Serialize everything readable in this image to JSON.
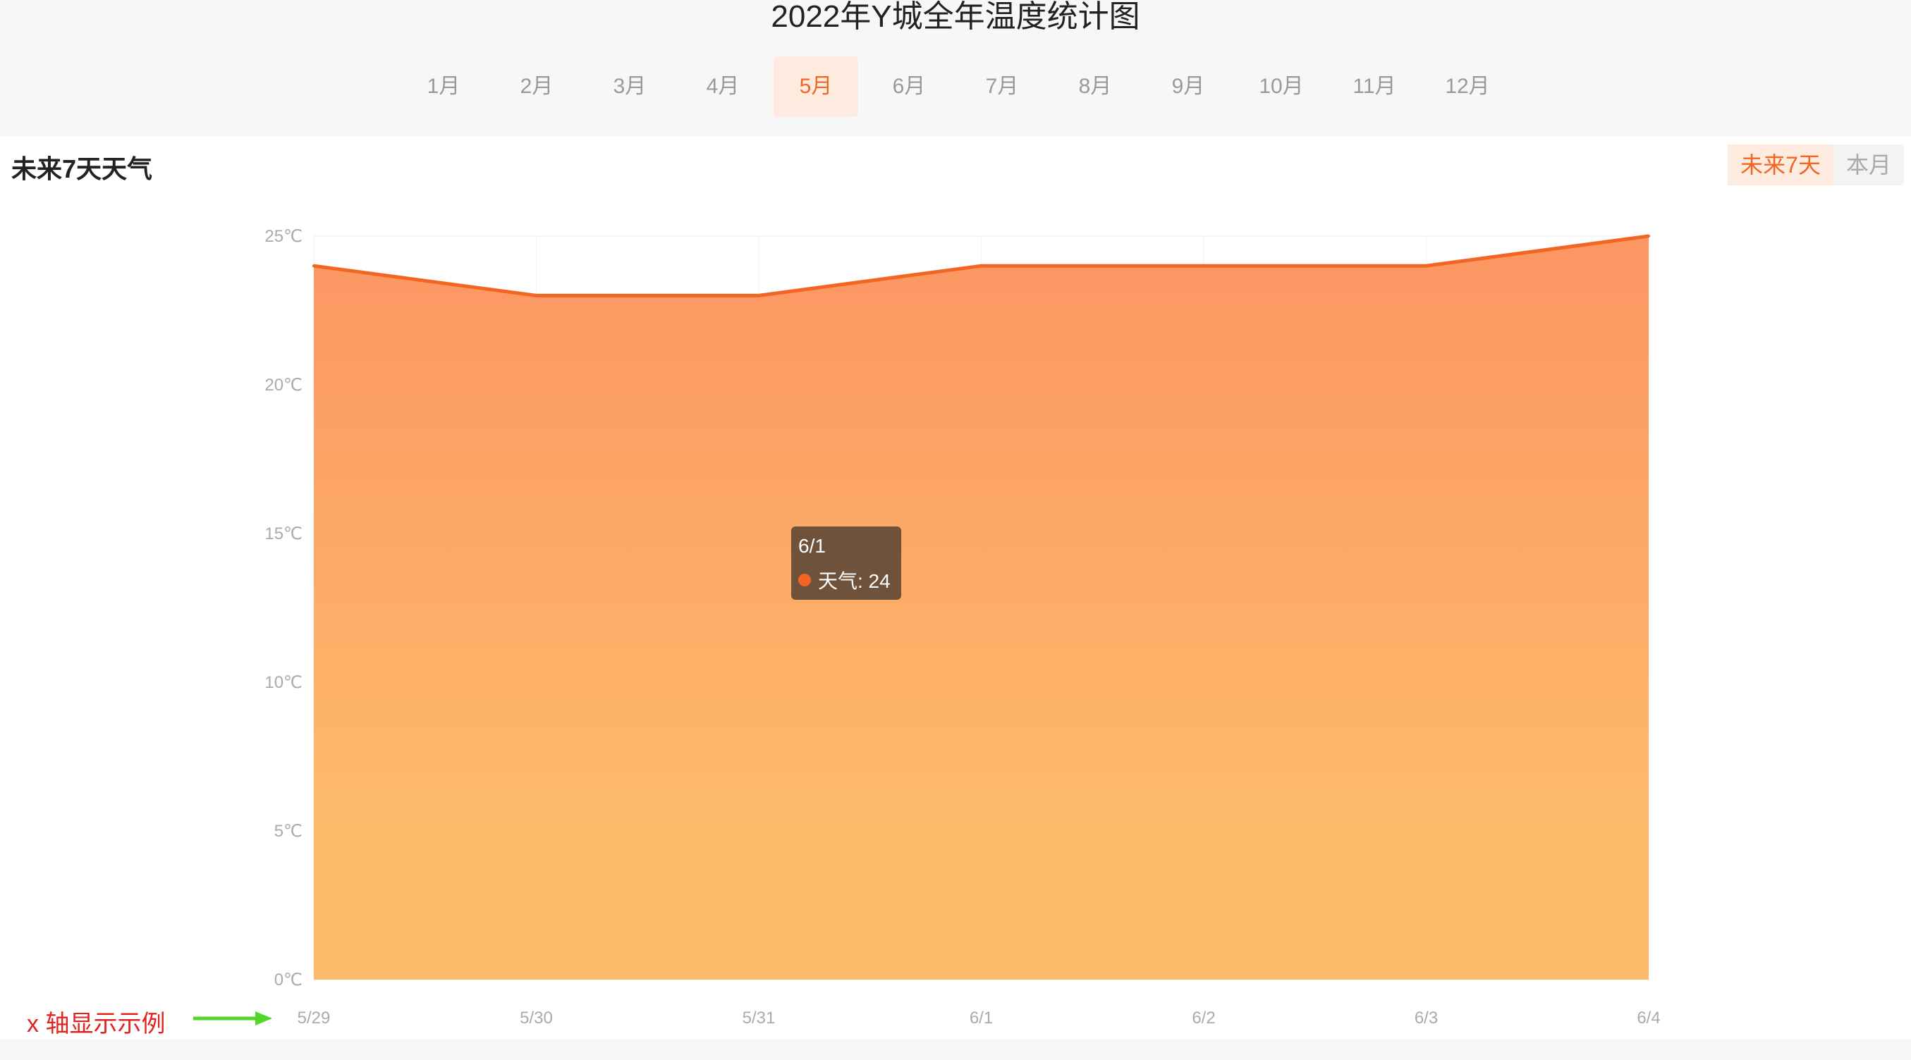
{
  "page_title": "2022年Y城全年温度统计图",
  "months": [
    {
      "label": "1月",
      "active": false
    },
    {
      "label": "2月",
      "active": false
    },
    {
      "label": "3月",
      "active": false
    },
    {
      "label": "4月",
      "active": false
    },
    {
      "label": "5月",
      "active": true
    },
    {
      "label": "6月",
      "active": false
    },
    {
      "label": "7月",
      "active": false
    },
    {
      "label": "8月",
      "active": false
    },
    {
      "label": "9月",
      "active": false
    },
    {
      "label": "10月",
      "active": false
    },
    {
      "label": "11月",
      "active": false
    },
    {
      "label": "12月",
      "active": false
    }
  ],
  "section_title": "未来7天天气",
  "range_toggle": {
    "next7": "未来7天",
    "month": "本月",
    "active": "next7"
  },
  "tooltip": {
    "date": "6/1",
    "label": "天气: 24"
  },
  "annotation": {
    "text": "x 轴显示示例",
    "arrow_color": "#52d62a",
    "text_color": "#e0231f"
  },
  "colors": {
    "accent": "#f26522",
    "area_top": "#fc9563",
    "area_bottom": "#fdbb6a"
  },
  "chart_data": {
    "type": "area",
    "categories": [
      "5/29",
      "5/30",
      "5/31",
      "6/1",
      "6/2",
      "6/3",
      "6/4"
    ],
    "series": [
      {
        "name": "天气",
        "values": [
          24,
          23,
          23,
          24,
          24,
          24,
          25
        ]
      }
    ],
    "title": "",
    "xlabel": "",
    "ylabel": "",
    "ylim": [
      0,
      25
    ],
    "yticks": [
      0,
      5,
      10,
      15,
      20,
      25
    ],
    "ytick_suffix": "℃",
    "grid": true,
    "legend": "none"
  }
}
